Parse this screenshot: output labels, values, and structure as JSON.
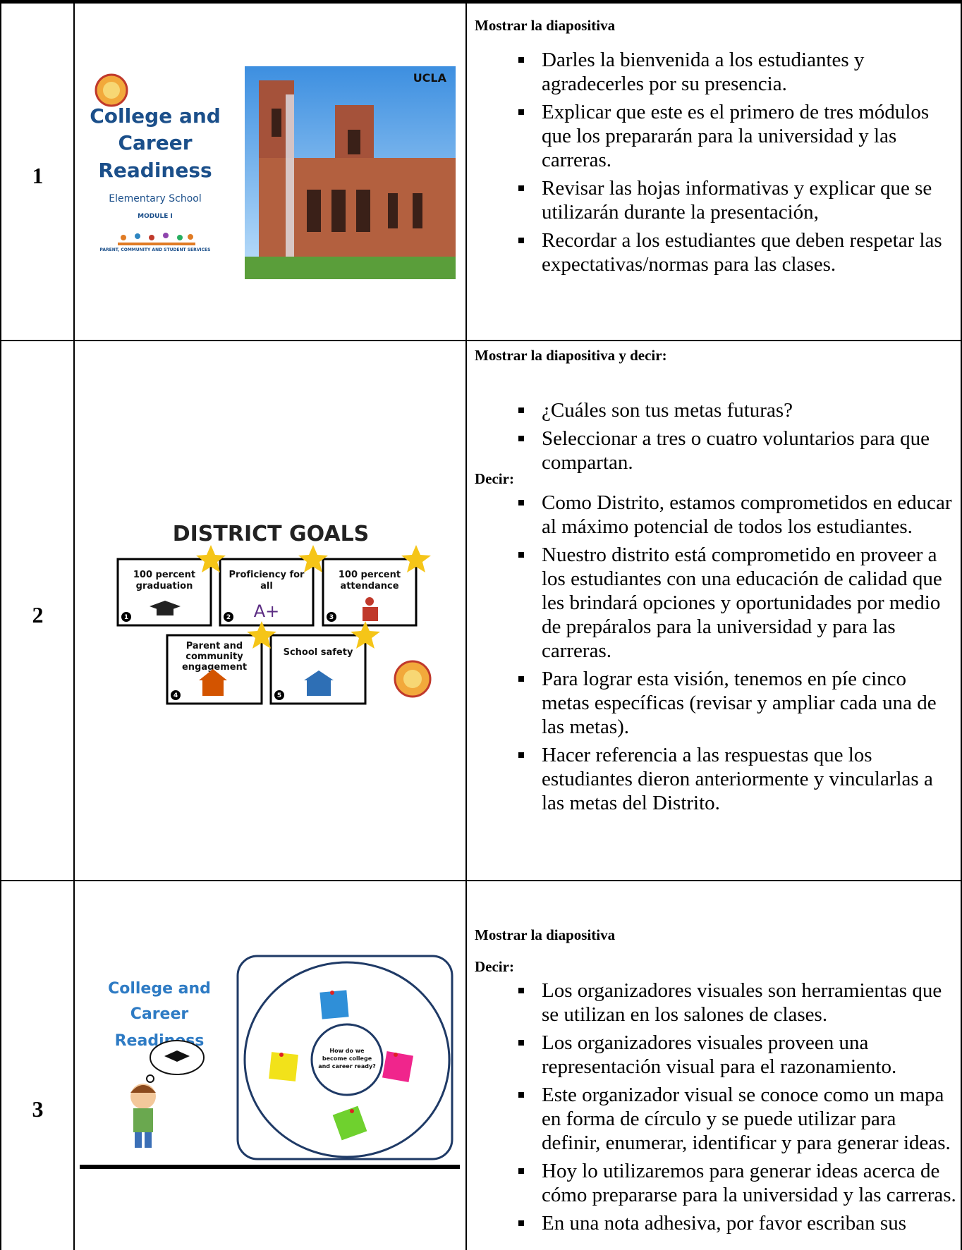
{
  "table": {
    "rows": [
      {
        "number": "1",
        "slide": {
          "title_lines": [
            "College and",
            "Career",
            "Readiness"
          ],
          "subtitle": "Elementary School",
          "module": "MODULE I",
          "footer": "PARENT, COMMUNITY AND STUDENT SERVICES",
          "photo_caption": "UCLA"
        },
        "sections": [
          {
            "heading": "Mostrar la diapositiva",
            "bullets": [
              "Darles la bienvenida a los estudiantes y agradecerles por su presencia.",
              "Explicar que este es el primero de tres módulos que los prepararán para la universidad y las carreras.",
              "Revisar las hojas informativas y explicar que se utilizarán durante la presentación,",
              "Recordar a los estudiantes que deben respetar las expectativas/normas para las clases."
            ]
          }
        ]
      },
      {
        "number": "2",
        "slide": {
          "title": "DISTRICT GOALS",
          "goals": [
            {
              "number": "1",
              "label_lines": [
                "100 percent",
                "graduation"
              ]
            },
            {
              "number": "2",
              "label_lines": [
                "Proficiency for",
                "all"
              ],
              "icon_text": "A+"
            },
            {
              "number": "3",
              "label_lines": [
                "100 percent",
                "attendance"
              ]
            },
            {
              "number": "4",
              "label_lines": [
                "Parent and",
                "community",
                "engagement"
              ]
            },
            {
              "number": "5",
              "label_lines": [
                "School safety"
              ]
            }
          ]
        },
        "sections": [
          {
            "heading": "Mostrar la diapositiva y decir:",
            "bullets": [
              "¿Cuáles son tus metas futuras?",
              "Seleccionar a tres o cuatro voluntarios para que compartan."
            ]
          },
          {
            "heading": "Decir:",
            "bullets": [
              "Como Distrito, estamos comprometidos en educar al máximo potencial de todos los estudiantes.",
              "Nuestro distrito está comprometido en proveer a los estudiantes con una educación de calidad que les brindará opciones y oportunidades por medio de prepáralos para la universidad y para las carreras.",
              "Para lograr esta visión, tenemos en píe cinco metas específicas (revisar y ampliar cada una de las metas).",
              "Hacer referencia a las respuestas que los estudiantes dieron anteriormente y vincularlas a las metas del Distrito."
            ]
          }
        ]
      },
      {
        "number": "3",
        "slide": {
          "title_lines": [
            "College and",
            "Career",
            "Readiness"
          ],
          "center_lines": [
            "How do we",
            "become college",
            "and career ready?"
          ]
        },
        "sections": [
          {
            "heading": "Mostrar la diapositiva"
          },
          {
            "heading": "Decir:",
            "bullets": [
              "Los organizadores visuales son herramientas que se utilizan en los salones de clases.",
              "Los organizadores visuales proveen una representación visual para el razonamiento.",
              "Este organizador visual se conoce como un mapa en forma de círculo y se puede utilizar para definir, enumerar, identificar y para generar ideas.",
              "Hoy lo utilizaremos para generar ideas acerca de cómo prepararse para la universidad y las carreras.",
              "En una nota adhesiva, por favor escriban sus"
            ]
          }
        ]
      }
    ]
  }
}
